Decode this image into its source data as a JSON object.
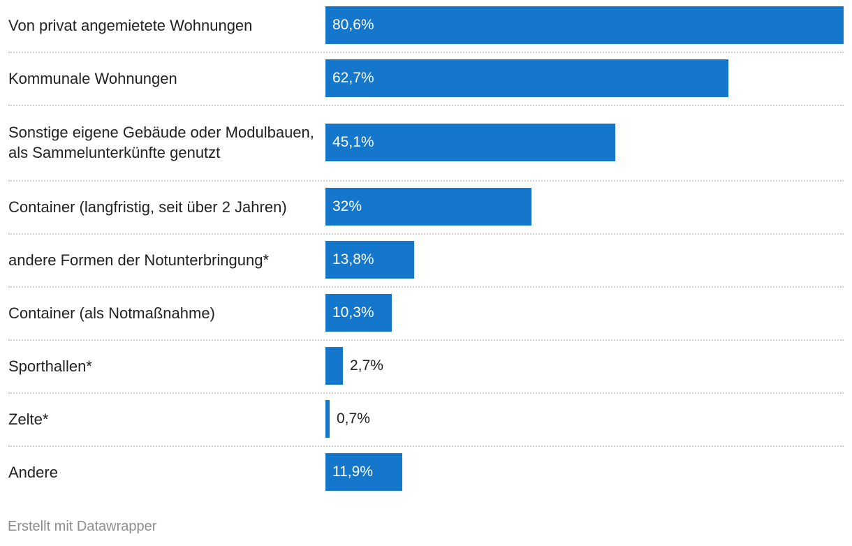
{
  "chart_data": {
    "type": "bar",
    "orientation": "horizontal",
    "categories": [
      "Von privat angemietete Wohnungen",
      "Kommunale Wohnungen",
      "Sonstige eigene Gebäude oder Modulbauen, als Sammelunterkünfte genutzt",
      "Container (langfristig, seit über 2 Jahren)",
      "andere Formen der Notunterbringung*",
      "Container (als Notmaßnahme)",
      "Sporthallen*",
      "Zelte*",
      "Andere"
    ],
    "values": [
      80.6,
      62.7,
      45.1,
      32,
      13.8,
      10.3,
      2.7,
      0.7,
      11.9
    ],
    "value_labels": [
      "80,6%",
      "62,7%",
      "45,1%",
      "32%",
      "13,8%",
      "10,3%",
      "2,7%",
      "0,7%",
      "11,9%"
    ],
    "unit": "%",
    "xlim": [
      0,
      80.6
    ],
    "bar_color": "#1477cc"
  },
  "footer": {
    "credit": "Erstellt mit Datawrapper"
  }
}
